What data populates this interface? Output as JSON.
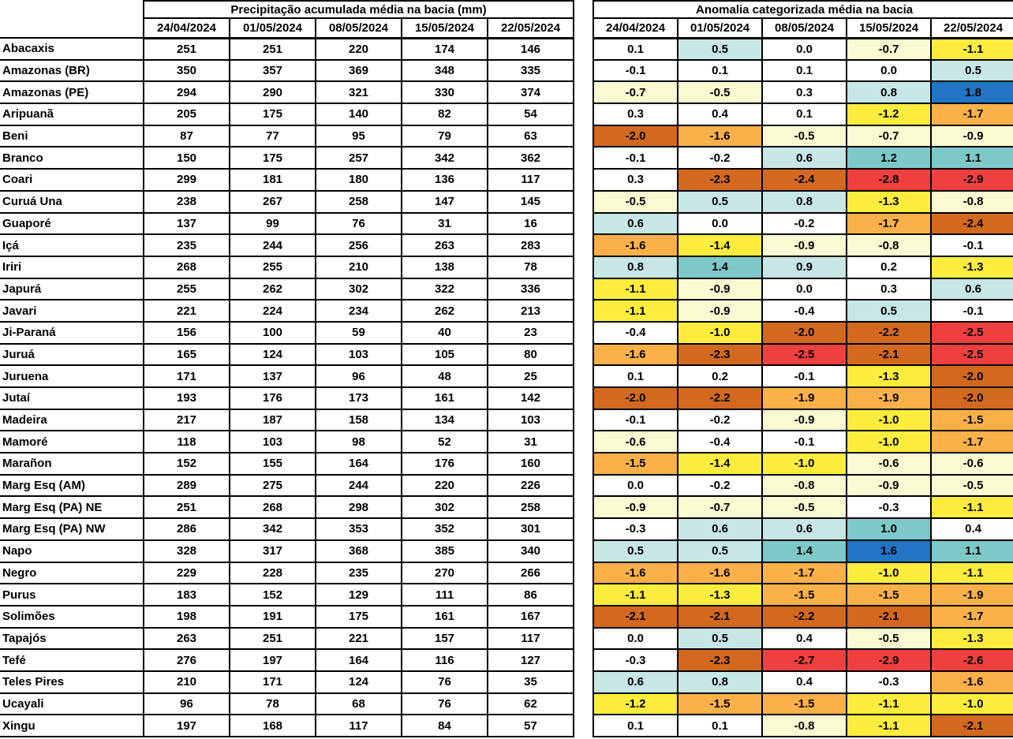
{
  "basins": [
    "Abacaxis",
    "Amazonas (BR)",
    "Amazonas (PE)",
    "Aripuanã",
    "Beni",
    "Branco",
    "Coari",
    "Curuá Una",
    "Guaporé",
    "Içá",
    "Iriri",
    "Japurá",
    "Javari",
    "Ji-Paraná",
    "Juruá",
    "Juruena",
    "Jutaí",
    "Madeira",
    "Mamoré",
    "Marañon",
    "Marg Esq (AM)",
    "Marg Esq (PA) NE",
    "Marg Esq (PA) NW",
    "Napo",
    "Negro",
    "Purus",
    "Solimões",
    "Tapajós",
    "Tefé",
    "Teles Pires",
    "Ucayali",
    "Xingu"
  ],
  "chart_data": [
    {
      "type": "table",
      "title": "Precipitação acumulada média na bacia (mm)",
      "columns": [
        "24/04/2024",
        "01/05/2024",
        "08/05/2024",
        "15/05/2024",
        "22/05/2024"
      ],
      "row_header_key": "basins",
      "values": [
        [
          251,
          251,
          220,
          174,
          146
        ],
        [
          350,
          357,
          369,
          348,
          335
        ],
        [
          294,
          290,
          321,
          330,
          374
        ],
        [
          205,
          175,
          140,
          82,
          54
        ],
        [
          87,
          77,
          95,
          79,
          63
        ],
        [
          150,
          175,
          257,
          342,
          362
        ],
        [
          299,
          181,
          180,
          136,
          117
        ],
        [
          238,
          267,
          258,
          147,
          145
        ],
        [
          137,
          99,
          76,
          31,
          16
        ],
        [
          235,
          244,
          256,
          263,
          283
        ],
        [
          268,
          255,
          210,
          138,
          78
        ],
        [
          255,
          262,
          302,
          322,
          336
        ],
        [
          221,
          224,
          234,
          262,
          213
        ],
        [
          156,
          100,
          59,
          40,
          23
        ],
        [
          165,
          124,
          103,
          105,
          80
        ],
        [
          171,
          137,
          96,
          48,
          25
        ],
        [
          193,
          176,
          173,
          161,
          142
        ],
        [
          217,
          187,
          158,
          134,
          103
        ],
        [
          118,
          103,
          98,
          52,
          31
        ],
        [
          152,
          155,
          164,
          176,
          160
        ],
        [
          289,
          275,
          244,
          220,
          226
        ],
        [
          251,
          268,
          298,
          302,
          258
        ],
        [
          286,
          342,
          353,
          352,
          301
        ],
        [
          328,
          317,
          368,
          385,
          340
        ],
        [
          229,
          228,
          235,
          270,
          266
        ],
        [
          183,
          152,
          129,
          111,
          86
        ],
        [
          198,
          191,
          175,
          161,
          167
        ],
        [
          263,
          251,
          221,
          157,
          117
        ],
        [
          276,
          197,
          164,
          116,
          127
        ],
        [
          210,
          171,
          124,
          76,
          35
        ],
        [
          96,
          78,
          68,
          76,
          62
        ],
        [
          197,
          168,
          117,
          84,
          57
        ]
      ]
    },
    {
      "type": "table",
      "title": "Anomalia categorizada média na bacia",
      "columns": [
        "24/04/2024",
        "01/05/2024",
        "08/05/2024",
        "15/05/2024",
        "22/05/2024"
      ],
      "row_header_key": "basins",
      "values": [
        [
          "0.1",
          "0.5",
          "0.0",
          "-0.7",
          "-1.1"
        ],
        [
          "-0.1",
          "0.1",
          "0.1",
          "0.0",
          "0.5"
        ],
        [
          "-0.7",
          "-0.5",
          "0.3",
          "0.8",
          "1.8"
        ],
        [
          "0.3",
          "0.4",
          "0.1",
          "-1.2",
          "-1.7"
        ],
        [
          "-2.0",
          "-1.6",
          "-0.5",
          "-0.7",
          "-0.9"
        ],
        [
          "-0.1",
          "-0.2",
          "0.6",
          "1.2",
          "1.1"
        ],
        [
          "0.3",
          "-2.3",
          "-2.4",
          "-2.8",
          "-2.9"
        ],
        [
          "-0.5",
          "0.5",
          "0.8",
          "-1.3",
          "-0.8"
        ],
        [
          "0.6",
          "0.0",
          "-0.2",
          "-1.7",
          "-2.4"
        ],
        [
          "-1.6",
          "-1.4",
          "-0.9",
          "-0.8",
          "-0.1"
        ],
        [
          "0.8",
          "1.4",
          "0.9",
          "0.2",
          "-1.3"
        ],
        [
          "-1.1",
          "-0.9",
          "0.0",
          "0.3",
          "0.6"
        ],
        [
          "-1.1",
          "-0.9",
          "-0.4",
          "0.5",
          "-0.1"
        ],
        [
          "-0.4",
          "-1.0",
          "-2.0",
          "-2.2",
          "-2.5"
        ],
        [
          "-1.6",
          "-2.3",
          "-2.5",
          "-2.1",
          "-2.5"
        ],
        [
          "0.1",
          "0.2",
          "-0.1",
          "-1.3",
          "-2.0"
        ],
        [
          "-2.0",
          "-2.2",
          "-1.9",
          "-1.9",
          "-2.0"
        ],
        [
          "-0.1",
          "-0.2",
          "-0.9",
          "-1.0",
          "-1.5"
        ],
        [
          "-0.6",
          "-0.4",
          "-0.1",
          "-1.0",
          "-1.7"
        ],
        [
          "-1.5",
          "-1.4",
          "-1.0",
          "-0.6",
          "-0.6"
        ],
        [
          "0.0",
          "-0.2",
          "-0.8",
          "-0.9",
          "-0.5"
        ],
        [
          "-0.9",
          "-0.7",
          "-0.5",
          "-0.3",
          "-1.1"
        ],
        [
          "-0.3",
          "0.6",
          "0.6",
          "1.0",
          "0.4"
        ],
        [
          "0.5",
          "0.5",
          "1.4",
          "1.6",
          "1.1"
        ],
        [
          "-1.6",
          "-1.6",
          "-1.7",
          "-1.0",
          "-1.1"
        ],
        [
          "-1.1",
          "-1.3",
          "-1.5",
          "-1.5",
          "-1.9"
        ],
        [
          "-2.1",
          "-2.1",
          "-2.2",
          "-2.1",
          "-1.7"
        ],
        [
          "0.0",
          "0.5",
          "0.4",
          "-0.5",
          "-1.3"
        ],
        [
          "-0.3",
          "-2.3",
          "-2.7",
          "-2.9",
          "-2.6"
        ],
        [
          "0.6",
          "0.8",
          "0.4",
          "-0.3",
          "-1.6"
        ],
        [
          "-1.2",
          "-1.5",
          "-1.5",
          "-1.1",
          "-1.0"
        ],
        [
          "0.1",
          "0.1",
          "-0.8",
          "-1.1",
          "-2.1"
        ]
      ]
    }
  ],
  "anomaly_color_scale": [
    {
      "min": 1.5,
      "color": "#2274c4"
    },
    {
      "min": 1.0,
      "color": "#7dc8c8"
    },
    {
      "min": 0.5,
      "color": "#c7e6e6"
    },
    {
      "min": -0.4,
      "color": "#ffffff"
    },
    {
      "min": -0.9,
      "color": "#fafad2"
    },
    {
      "min": -1.4,
      "color": "#fcec3e"
    },
    {
      "min": -1.9,
      "color": "#fbb049"
    },
    {
      "min": -2.4,
      "color": "#d2691e"
    },
    {
      "min": -9.9,
      "color": "#f03f3f"
    }
  ],
  "colors": {
    "text": "#000000",
    "border": "#000000",
    "background": "#ffffff"
  }
}
